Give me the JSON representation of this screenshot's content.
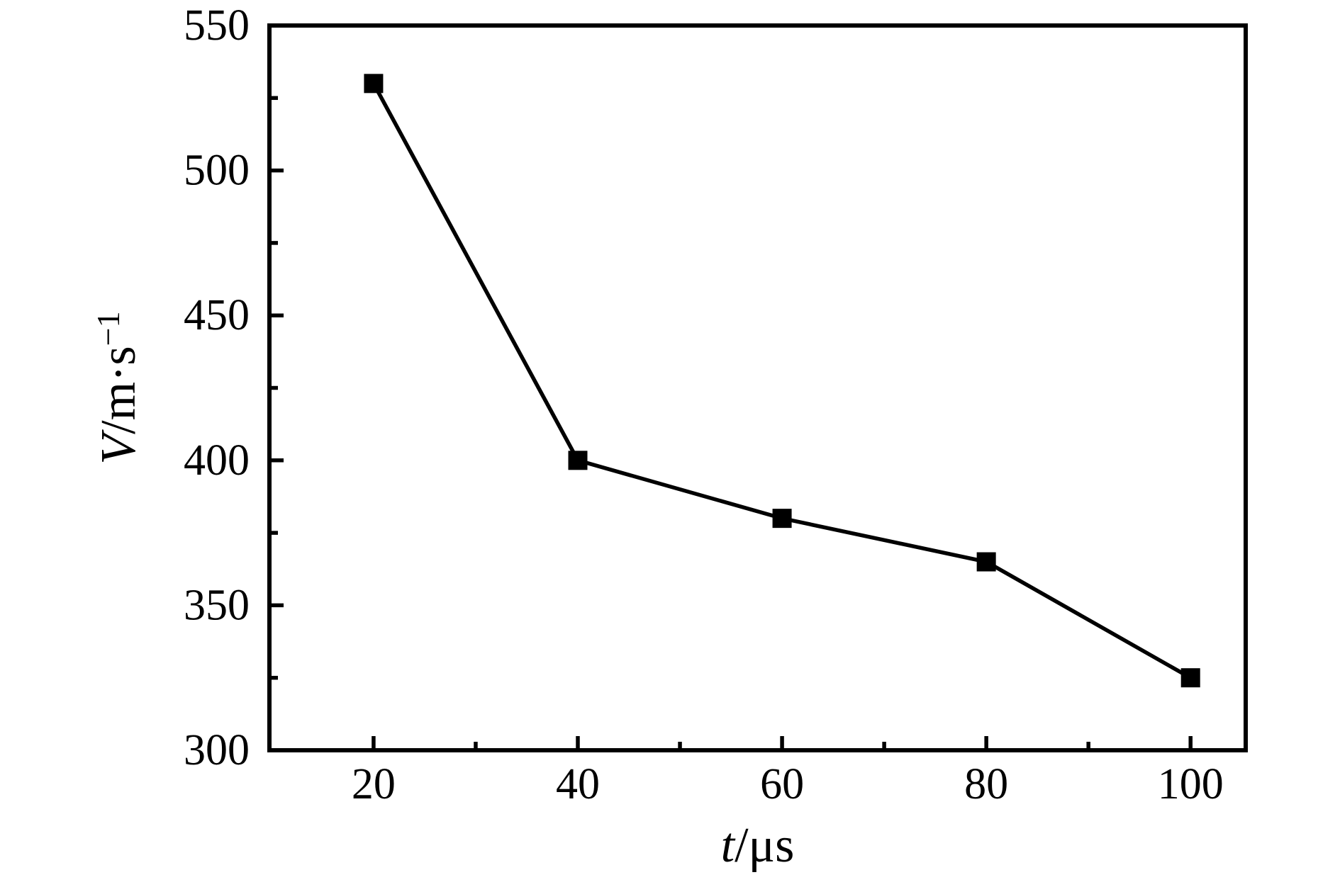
{
  "figure": {
    "background": "#ffffff",
    "foreground": "#000000"
  },
  "chart_data": {
    "type": "line",
    "title": "",
    "x": [
      20,
      40,
      60,
      80,
      100
    ],
    "y": [
      530,
      400,
      380,
      365,
      325
    ],
    "xlabel_var": "t",
    "xlabel_unit": "/μs",
    "ylabel_var": "V",
    "ylabel_unit": "/m·s",
    "ylabel_sup": "−1",
    "xlim": [
      9.8,
      105.4
    ],
    "ylim": [
      300,
      550
    ],
    "x_major_ticks": [
      20,
      40,
      60,
      80,
      100
    ],
    "x_tick_labels": [
      "20",
      "40",
      "60",
      "80",
      "100"
    ],
    "x_minor_ticks": [
      30,
      50,
      70,
      90
    ],
    "y_major_ticks": [
      300,
      350,
      400,
      450,
      500,
      550
    ],
    "y_tick_labels": [
      "300",
      "350",
      "400",
      "450",
      "500",
      "550"
    ],
    "y_minor_ticks": [
      325,
      375,
      425,
      475,
      525
    ],
    "line_color": "#000000",
    "marker": "square",
    "marker_color": "#000000",
    "marker_size": 27,
    "grid": false,
    "legend": false
  }
}
